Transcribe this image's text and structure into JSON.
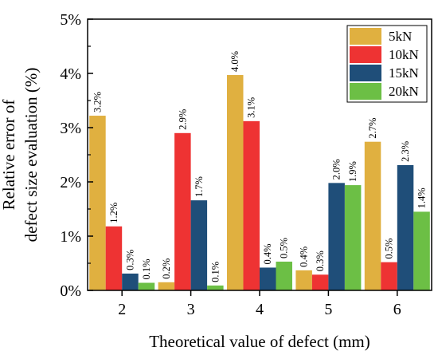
{
  "chart_data": {
    "type": "bar",
    "xlabel": "Theoretical value of defect (mm)",
    "ylabel_lines": [
      "Relative error of",
      "defect size evaluation (%)"
    ],
    "categories": [
      "2",
      "3",
      "4",
      "5",
      "6"
    ],
    "ylim": [
      0,
      5
    ],
    "yticks": [
      0,
      1,
      2,
      3,
      4,
      5
    ],
    "ytick_labels": [
      "0%",
      "1%",
      "2%",
      "3%",
      "4%",
      "5%"
    ],
    "grid": false,
    "legend_position": "top-right",
    "series": [
      {
        "name": "5kN",
        "color": "#e0b040",
        "values": [
          3.22,
          0.15,
          3.97,
          0.37,
          2.74
        ],
        "labels": [
          "3.2%",
          "0.2%",
          "4.0%",
          "0.4%",
          "2.7%"
        ]
      },
      {
        "name": "10kN",
        "color": "#ee3333",
        "values": [
          1.18,
          2.9,
          3.12,
          0.29,
          0.52
        ],
        "labels": [
          "1.2%",
          "2.9%",
          "3.1%",
          "0.3%",
          "0.5%"
        ]
      },
      {
        "name": "15kN",
        "color": "#1f4e79",
        "values": [
          0.31,
          1.66,
          0.42,
          1.98,
          2.31
        ],
        "labels": [
          "0.3%",
          "1.7%",
          "0.4%",
          "2.0%",
          "2.3%"
        ]
      },
      {
        "name": "20kN",
        "color": "#6cbf45",
        "values": [
          0.14,
          0.09,
          0.53,
          1.94,
          1.45
        ],
        "labels": [
          "0.1%",
          "0.1%",
          "0.5%",
          "1.9%",
          "1.4%"
        ]
      }
    ]
  }
}
